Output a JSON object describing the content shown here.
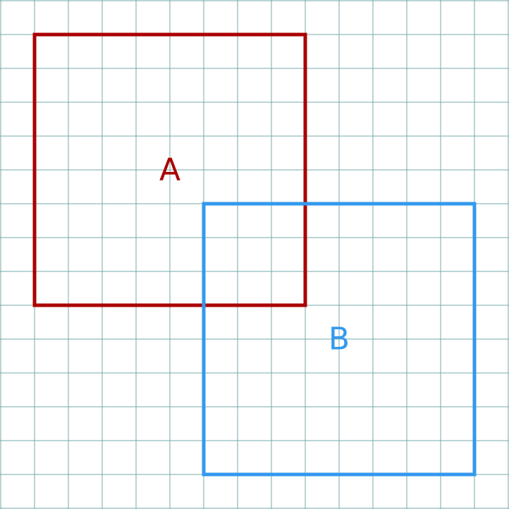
{
  "colors": {
    "grid": "#76aaa8",
    "square_a": "#aa0000",
    "square_b": "#3399ee",
    "background": "#ffffff"
  },
  "squares": [
    {
      "id": "a",
      "label": "A"
    },
    {
      "id": "b",
      "label": "B"
    }
  ]
}
